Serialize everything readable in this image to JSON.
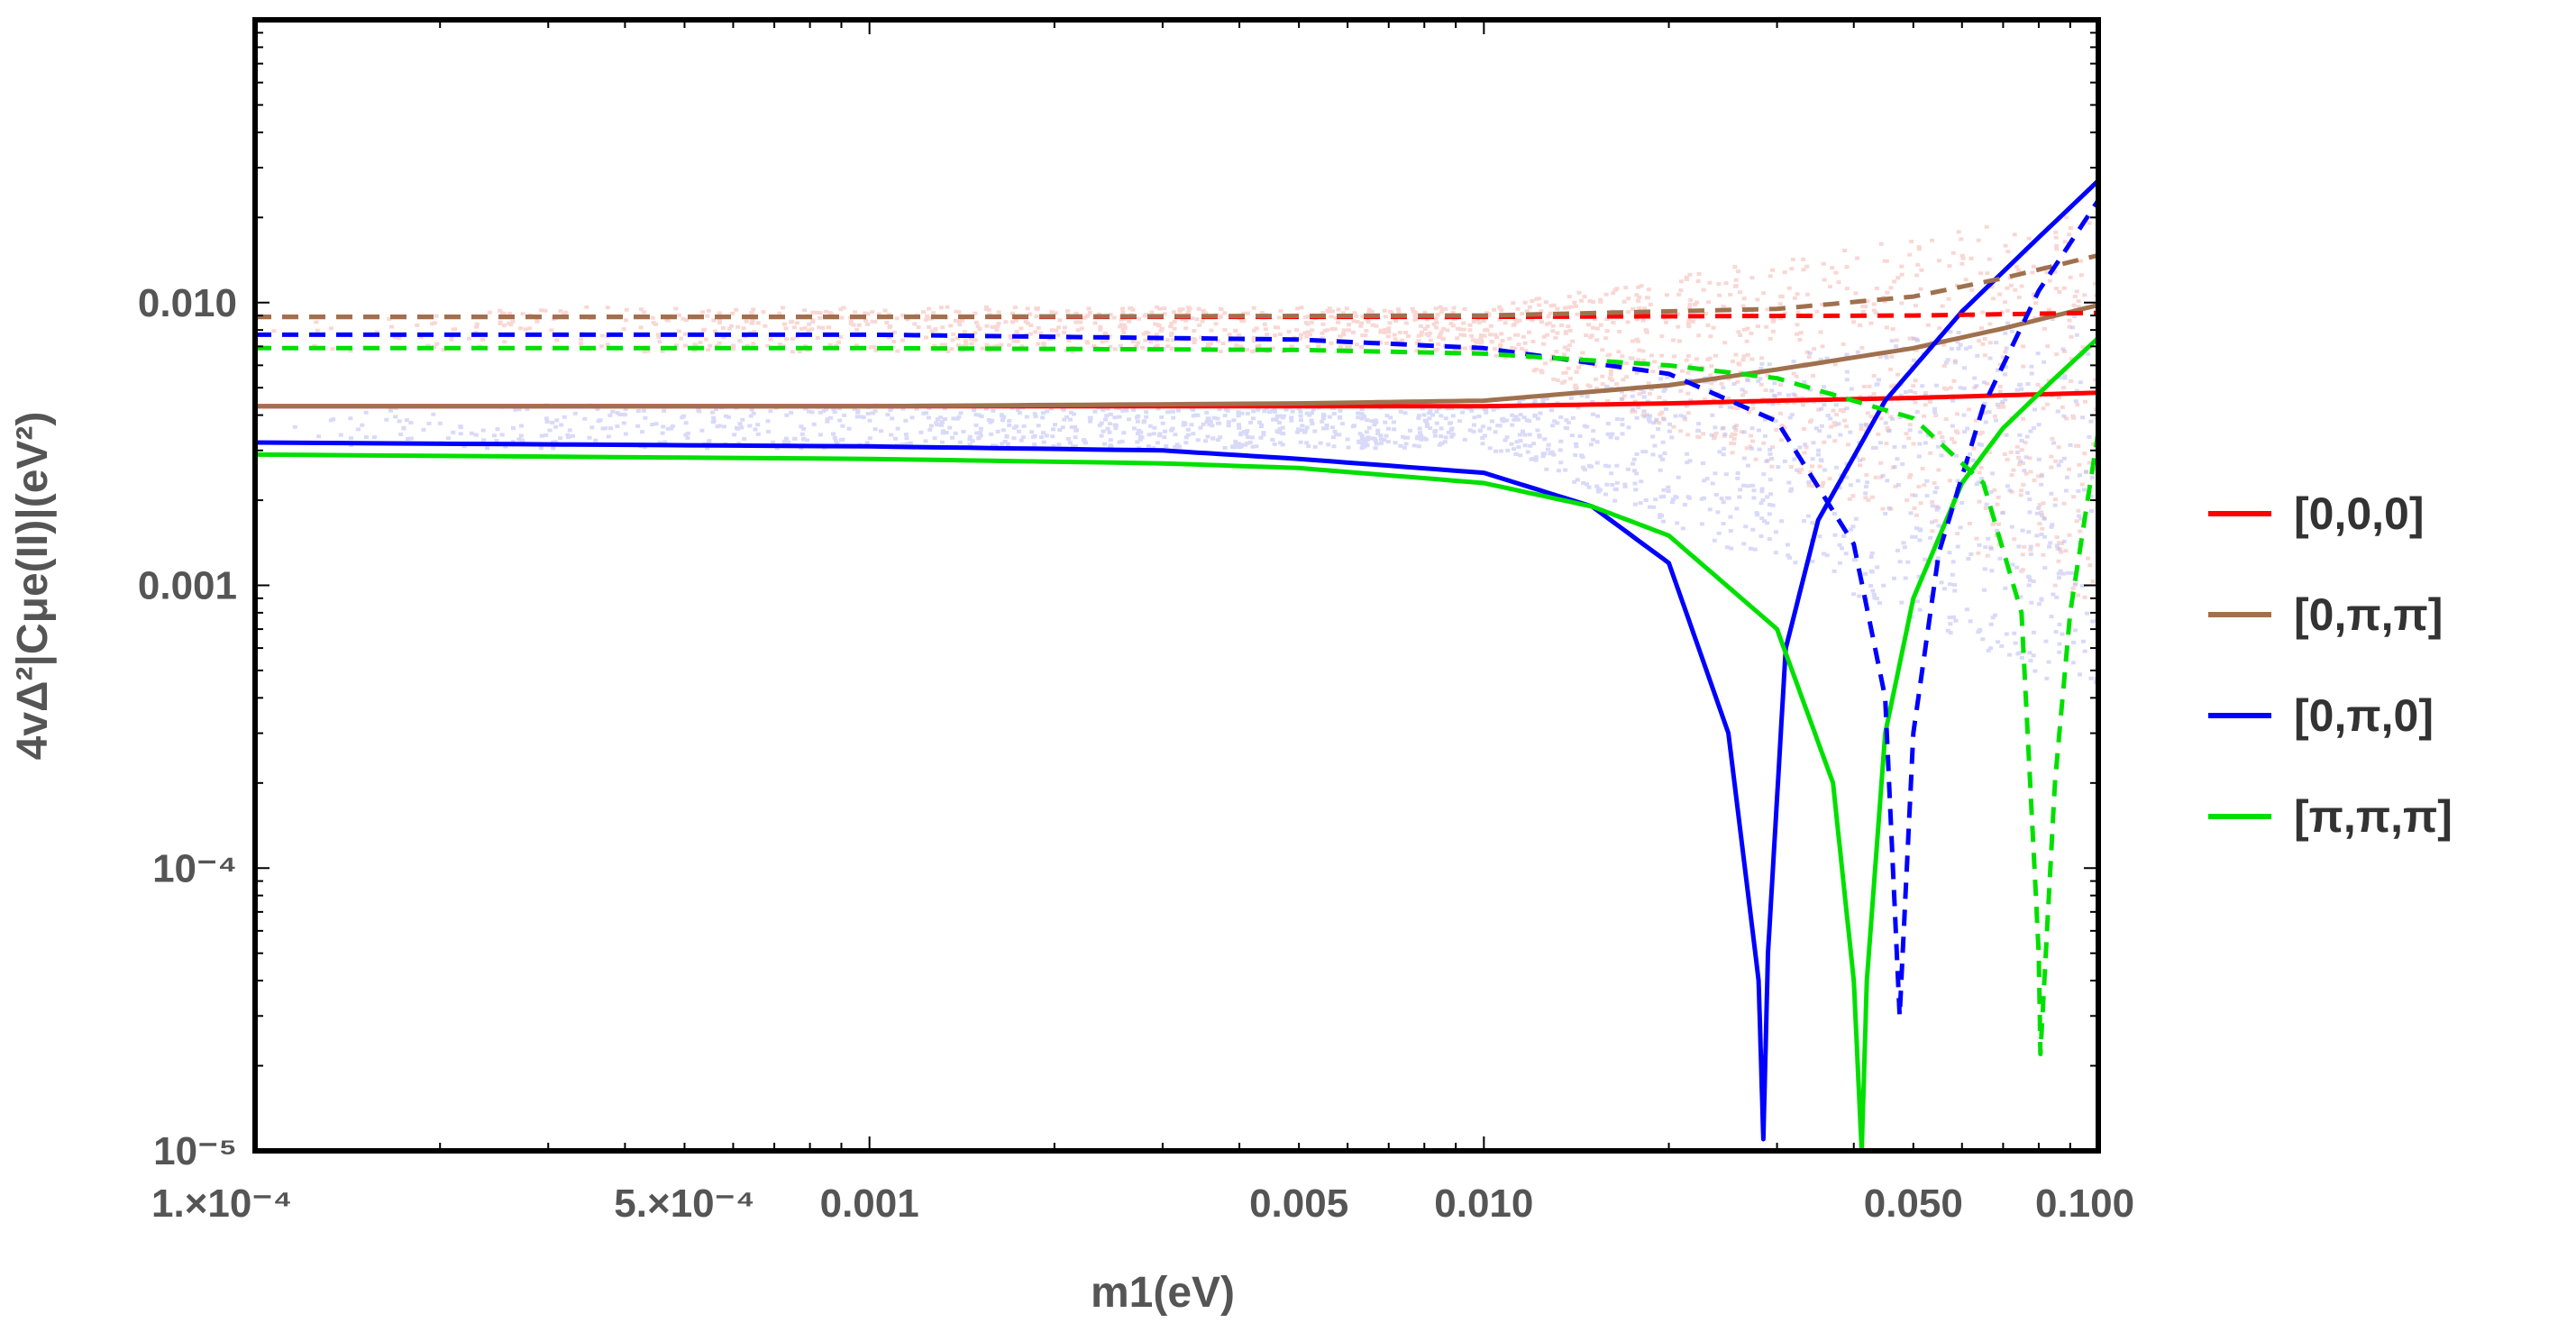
{
  "chart_data": {
    "type": "line",
    "xscale": "log",
    "yscale": "log",
    "xlim": [
      0.0001,
      0.1
    ],
    "ylim": [
      1e-05,
      0.1
    ],
    "xlabel": "m1(eV)",
    "ylabel": "4vΔ²|Cμe(II)|(eV²)",
    "x_ticks": [
      {
        "value": 0.0001,
        "label": "1.×10⁻⁴"
      },
      {
        "value": 0.0005,
        "label": "5.×10⁻⁴"
      },
      {
        "value": 0.001,
        "label": "0.001"
      },
      {
        "value": 0.005,
        "label": "0.005"
      },
      {
        "value": 0.01,
        "label": "0.010"
      },
      {
        "value": 0.05,
        "label": "0.050"
      },
      {
        "value": 0.1,
        "label": "0.100"
      }
    ],
    "y_ticks": [
      {
        "value": 0.01,
        "label": "0.010"
      },
      {
        "value": 0.001,
        "label": "0.001"
      },
      {
        "value": 0.0001,
        "label": "10⁻⁴"
      },
      {
        "value": 1e-05,
        "label": "10⁻⁵"
      }
    ],
    "legend_position": "right",
    "grid": false,
    "scatter_bands": [
      {
        "name": "pink",
        "color": "#f4b6b0",
        "lower": 0.0068,
        "upper": 0.0098
      },
      {
        "name": "lavender",
        "color": "#b9b9f2",
        "lower": 0.0031,
        "upper": 0.0044
      }
    ],
    "series": [
      {
        "name": "[0,0,0]",
        "color": "#ff0000",
        "style": "solid",
        "points": [
          [
            0.0001,
            0.0043
          ],
          [
            0.001,
            0.0043
          ],
          [
            0.005,
            0.0043
          ],
          [
            0.01,
            0.0043
          ],
          [
            0.02,
            0.0044
          ],
          [
            0.03,
            0.0045
          ],
          [
            0.05,
            0.0046
          ],
          [
            0.07,
            0.0047
          ],
          [
            0.1,
            0.0048
          ]
        ]
      },
      {
        "name": "[0,π,π]",
        "color": "#a0714e",
        "style": "solid",
        "points": [
          [
            0.0001,
            0.0043
          ],
          [
            0.001,
            0.0043
          ],
          [
            0.005,
            0.0044
          ],
          [
            0.01,
            0.0045
          ],
          [
            0.02,
            0.0051
          ],
          [
            0.03,
            0.0058
          ],
          [
            0.05,
            0.0069
          ],
          [
            0.07,
            0.0081
          ],
          [
            0.1,
            0.0098
          ]
        ]
      },
      {
        "name": "[0,π,0]",
        "color": "#0000ff",
        "style": "solid",
        "points": [
          [
            0.0001,
            0.0032
          ],
          [
            0.001,
            0.0031
          ],
          [
            0.003,
            0.003
          ],
          [
            0.005,
            0.0028
          ],
          [
            0.01,
            0.0025
          ],
          [
            0.015,
            0.0019
          ],
          [
            0.02,
            0.0012
          ],
          [
            0.025,
            0.0003
          ],
          [
            0.028,
            4e-05
          ],
          [
            0.0285,
            1.1e-05
          ],
          [
            0.029,
            5e-05
          ],
          [
            0.031,
            0.0006
          ],
          [
            0.035,
            0.0017
          ],
          [
            0.045,
            0.0045
          ],
          [
            0.06,
            0.0093
          ],
          [
            0.08,
            0.017
          ],
          [
            0.1,
            0.027
          ]
        ]
      },
      {
        "name": "[π,π,π]",
        "color": "#00e000",
        "style": "solid",
        "points": [
          [
            0.0001,
            0.0029
          ],
          [
            0.001,
            0.0028
          ],
          [
            0.003,
            0.0027
          ],
          [
            0.005,
            0.0026
          ],
          [
            0.01,
            0.0023
          ],
          [
            0.015,
            0.0019
          ],
          [
            0.02,
            0.0015
          ],
          [
            0.03,
            0.0007
          ],
          [
            0.037,
            0.0002
          ],
          [
            0.04,
            4e-05
          ],
          [
            0.0412,
            1e-05
          ],
          [
            0.042,
            4e-05
          ],
          [
            0.045,
            0.0003
          ],
          [
            0.05,
            0.0009
          ],
          [
            0.06,
            0.0023
          ],
          [
            0.07,
            0.0036
          ],
          [
            0.085,
            0.0054
          ],
          [
            0.1,
            0.0075
          ]
        ]
      },
      {
        "name": "[0,0,0] (dashed)",
        "color": "#ff0000",
        "style": "dashed",
        "points": [
          [
            0.0001,
            0.0089
          ],
          [
            0.001,
            0.0089
          ],
          [
            0.01,
            0.0089
          ],
          [
            0.05,
            0.009
          ],
          [
            0.1,
            0.0092
          ]
        ]
      },
      {
        "name": "[0,π,π] (dashed)",
        "color": "#a0714e",
        "style": "dashed",
        "points": [
          [
            0.0001,
            0.0089
          ],
          [
            0.001,
            0.0089
          ],
          [
            0.01,
            0.009
          ],
          [
            0.03,
            0.0095
          ],
          [
            0.05,
            0.0105
          ],
          [
            0.07,
            0.0122
          ],
          [
            0.1,
            0.0147
          ]
        ]
      },
      {
        "name": "[0,π,0] (dashed)",
        "color": "#0000ff",
        "style": "dashed",
        "points": [
          [
            0.0001,
            0.0077
          ],
          [
            0.001,
            0.0077
          ],
          [
            0.005,
            0.0074
          ],
          [
            0.01,
            0.0069
          ],
          [
            0.02,
            0.0056
          ],
          [
            0.03,
            0.0038
          ],
          [
            0.04,
            0.0014
          ],
          [
            0.045,
            0.0004
          ],
          [
            0.0475,
            3e-05
          ],
          [
            0.05,
            0.0003
          ],
          [
            0.055,
            0.0013
          ],
          [
            0.065,
            0.0043
          ],
          [
            0.08,
            0.011
          ],
          [
            0.1,
            0.023
          ]
        ]
      },
      {
        "name": "[π,π,π] (dashed)",
        "color": "#00e000",
        "style": "dashed",
        "points": [
          [
            0.0001,
            0.0069
          ],
          [
            0.001,
            0.0069
          ],
          [
            0.005,
            0.0068
          ],
          [
            0.01,
            0.0066
          ],
          [
            0.02,
            0.006
          ],
          [
            0.03,
            0.0054
          ],
          [
            0.05,
            0.0039
          ],
          [
            0.065,
            0.0023
          ],
          [
            0.075,
            0.0008
          ],
          [
            0.08,
            5e-05
          ],
          [
            0.0805,
            2.2e-05
          ],
          [
            0.085,
            0.0002
          ],
          [
            0.09,
            0.0008
          ],
          [
            0.1,
            0.0035
          ]
        ]
      }
    ]
  },
  "legend": [
    {
      "label": "[0,0,0]",
      "color": "#ff0000"
    },
    {
      "label": "[0,π,π]",
      "color": "#a0714e"
    },
    {
      "label": "[0,π,0]",
      "color": "#0000ff"
    },
    {
      "label": "[π,π,π]",
      "color": "#00e000"
    }
  ]
}
